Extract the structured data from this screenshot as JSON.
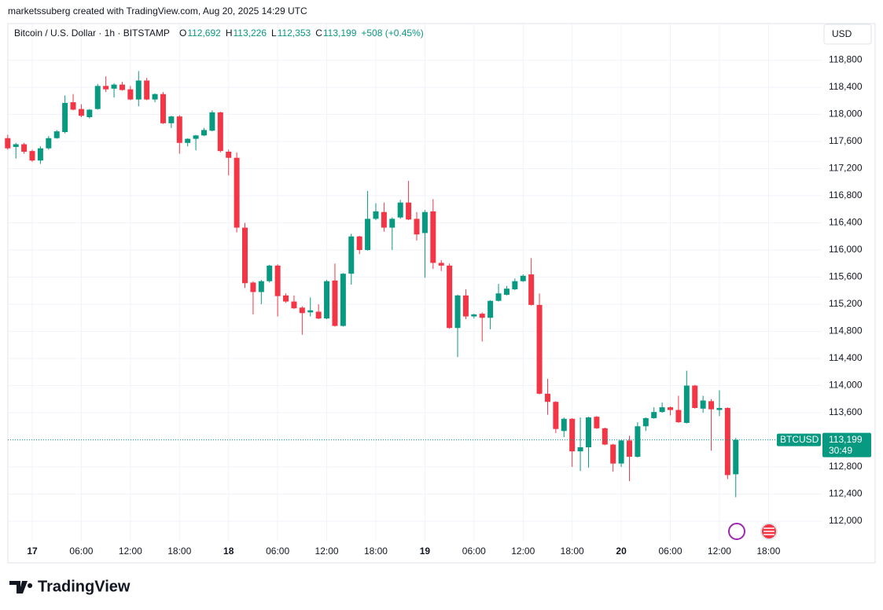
{
  "chart_data": {
    "type": "candlestick",
    "credit": "marketssuberg created with TradingView.com, Aug 20, 2025 14:29 UTC",
    "symbol": "Bitcoin / U.S. Dollar · 1h · BITSTAMP",
    "ohlc": [
      {
        "key": "O",
        "value": "112,692"
      },
      {
        "key": "H",
        "value": "113,226"
      },
      {
        "key": "L",
        "value": "112,353"
      },
      {
        "key": "C",
        "value": "113,199"
      }
    ],
    "change": "+508 (+0.45%)",
    "currency": "USD",
    "symbol_tag": "BTCUSD",
    "countdown": "30:49",
    "brand": "TradingView",
    "up_color": "#089981",
    "down_color": "#f23645",
    "grid": true,
    "last_price": {
      "value": 113199,
      "label": "113,199"
    },
    "x": [
      -3,
      -2,
      -1,
      0,
      1,
      2,
      3,
      4,
      5,
      6,
      7,
      8,
      9,
      10,
      11,
      12,
      13,
      14,
      15,
      16,
      17,
      18,
      19,
      20,
      21,
      22,
      23,
      24,
      25,
      26,
      27,
      28,
      29,
      30,
      31,
      32,
      33,
      34,
      35,
      36,
      37,
      38,
      39,
      40,
      41,
      42,
      43,
      44,
      45,
      46,
      47,
      48,
      49,
      50,
      51,
      52,
      53,
      54,
      55,
      56,
      57,
      58,
      59,
      60,
      61,
      62,
      63,
      64,
      65,
      66,
      67,
      68,
      69,
      70,
      71,
      72,
      73,
      74,
      75,
      76,
      77,
      78,
      79,
      80,
      81,
      82,
      83,
      84,
      85,
      86
    ],
    "open": [
      117650,
      117520,
      117560,
      117460,
      117320,
      117500,
      117650,
      117740,
      118180,
      118080,
      117960,
      118080,
      118420,
      118380,
      118440,
      118370,
      118220,
      118500,
      118220,
      118300,
      117870,
      117970,
      117580,
      117640,
      117690,
      117760,
      118030,
      117450,
      117360,
      116330,
      115520,
      115380,
      115540,
      115770,
      115330,
      115240,
      115150,
      115080,
      115090,
      114990,
      115550,
      114880,
      115650,
      116200,
      116000,
      116460,
      116560,
      116330,
      116480,
      116700,
      116460,
      116250,
      116570,
      115810,
      115770,
      114850,
      115330,
      115020,
      115060,
      115000,
      115250,
      115340,
      115420,
      115540,
      115640,
      115190,
      113880,
      113760,
      113330,
      113510,
      113030,
      113090,
      113540,
      113370,
      113130,
      112850,
      113190,
      112950,
      113400,
      113520,
      113610,
      113680,
      113640,
      113450,
      114000,
      113660,
      113770,
      113640,
      113670,
      112692
    ],
    "high": [
      117700,
      117580,
      117580,
      117480,
      117530,
      117680,
      117770,
      118280,
      118300,
      118150,
      118080,
      118450,
      118560,
      118460,
      118480,
      118420,
      118640,
      118540,
      118310,
      118330,
      117980,
      117990,
      117650,
      117700,
      117800,
      118060,
      118040,
      117480,
      117440,
      116400,
      115540,
      115560,
      115780,
      115790,
      115360,
      115330,
      115170,
      115300,
      115200,
      115560,
      115800,
      115660,
      116240,
      116210,
      116870,
      116690,
      116700,
      116480,
      116740,
      117020,
      116560,
      116590,
      116750,
      115850,
      115800,
      115340,
      115420,
      115060,
      115080,
      115260,
      115500,
      115470,
      115580,
      115640,
      115880,
      115360,
      114100,
      113770,
      113530,
      113520,
      113530,
      113540,
      113550,
      113380,
      113140,
      113200,
      113260,
      113460,
      113530,
      113680,
      113750,
      113690,
      113850,
      114220,
      114010,
      113850,
      113800,
      113930,
      113680,
      113226
    ],
    "low": [
      117480,
      117350,
      117420,
      117300,
      117270,
      117480,
      117640,
      117720,
      118060,
      117960,
      117940,
      118070,
      118330,
      118250,
      118350,
      118210,
      118120,
      118210,
      118180,
      117860,
      117800,
      117420,
      117530,
      117470,
      117680,
      117750,
      117440,
      117100,
      116260,
      115440,
      115050,
      115200,
      115520,
      115020,
      115220,
      115130,
      114750,
      115020,
      114980,
      114980,
      114870,
      114870,
      115490,
      115940,
      115990,
      116440,
      116270,
      116000,
      116460,
      116440,
      116140,
      115590,
      115720,
      115690,
      114840,
      114420,
      114980,
      114990,
      114650,
      114830,
      115240,
      115330,
      115410,
      115530,
      115180,
      113870,
      113570,
      113300,
      113240,
      112800,
      112740,
      112790,
      113360,
      113120,
      112730,
      112800,
      112590,
      112940,
      113330,
      113510,
      113600,
      113560,
      113450,
      113440,
      113660,
      113600,
      113040,
      113550,
      112620,
      112353
    ],
    "close": [
      117500,
      117560,
      117450,
      117320,
      117500,
      117650,
      117750,
      118170,
      118070,
      117980,
      118070,
      118420,
      118370,
      118440,
      118360,
      118220,
      118500,
      118220,
      118300,
      117870,
      117970,
      117580,
      117640,
      117690,
      117770,
      118030,
      117460,
      117360,
      116330,
      115510,
      115380,
      115540,
      115770,
      115320,
      115240,
      115140,
      115070,
      115110,
      114990,
      115540,
      114880,
      115650,
      116200,
      116000,
      116460,
      116570,
      116330,
      116460,
      116700,
      116450,
      116230,
      116560,
      115810,
      115770,
      114850,
      115330,
      115020,
      115050,
      115000,
      115250,
      115360,
      115430,
      115540,
      115620,
      115190,
      113880,
      113760,
      113360,
      113510,
      113030,
      113090,
      113530,
      113370,
      113130,
      112850,
      113190,
      112950,
      113400,
      113520,
      113610,
      113680,
      113640,
      113460,
      114000,
      113670,
      113780,
      113650,
      113670,
      112680,
      113199
    ],
    "xlim": [
      -2.98,
      96.5
    ],
    "xticks": [
      {
        "value": 0,
        "label": "17"
      },
      {
        "value": 6,
        "label": "06:00"
      },
      {
        "value": 12,
        "label": "12:00"
      },
      {
        "value": 18,
        "label": "18:00"
      },
      {
        "value": 24,
        "label": "18"
      },
      {
        "value": 30,
        "label": "06:00"
      },
      {
        "value": 36,
        "label": "12:00"
      },
      {
        "value": 42,
        "label": "18:00"
      },
      {
        "value": 48,
        "label": "19"
      },
      {
        "value": 54,
        "label": "06:00"
      },
      {
        "value": 60,
        "label": "12:00"
      },
      {
        "value": 66,
        "label": "18:00"
      },
      {
        "value": 72,
        "label": "20"
      },
      {
        "value": 78,
        "label": "06:00"
      },
      {
        "value": 84,
        "label": "12:00"
      },
      {
        "value": 90,
        "label": "18:00"
      }
    ],
    "ylim": [
      111710,
      119340
    ],
    "yticks": [
      {
        "value": 112000,
        "label": "112,000"
      },
      {
        "value": 112400,
        "label": "112,400"
      },
      {
        "value": 112800,
        "label": "112,800"
      },
      {
        "value": 113200,
        "label": "113,200"
      },
      {
        "value": 113600,
        "label": "113,600"
      },
      {
        "value": 114000,
        "label": "114,000"
      },
      {
        "value": 114400,
        "label": "114,400"
      },
      {
        "value": 114800,
        "label": "114,800"
      },
      {
        "value": 115200,
        "label": "115,200"
      },
      {
        "value": 115600,
        "label": "115,600"
      },
      {
        "value": 116000,
        "label": "116,000"
      },
      {
        "value": 116400,
        "label": "116,400"
      },
      {
        "value": 116800,
        "label": "116,800"
      },
      {
        "value": 117200,
        "label": "117,200"
      },
      {
        "value": 117600,
        "label": "117,600"
      },
      {
        "value": 118000,
        "label": "118,000"
      },
      {
        "value": 118400,
        "label": "118,400"
      },
      {
        "value": 118800,
        "label": "118,800"
      }
    ]
  }
}
